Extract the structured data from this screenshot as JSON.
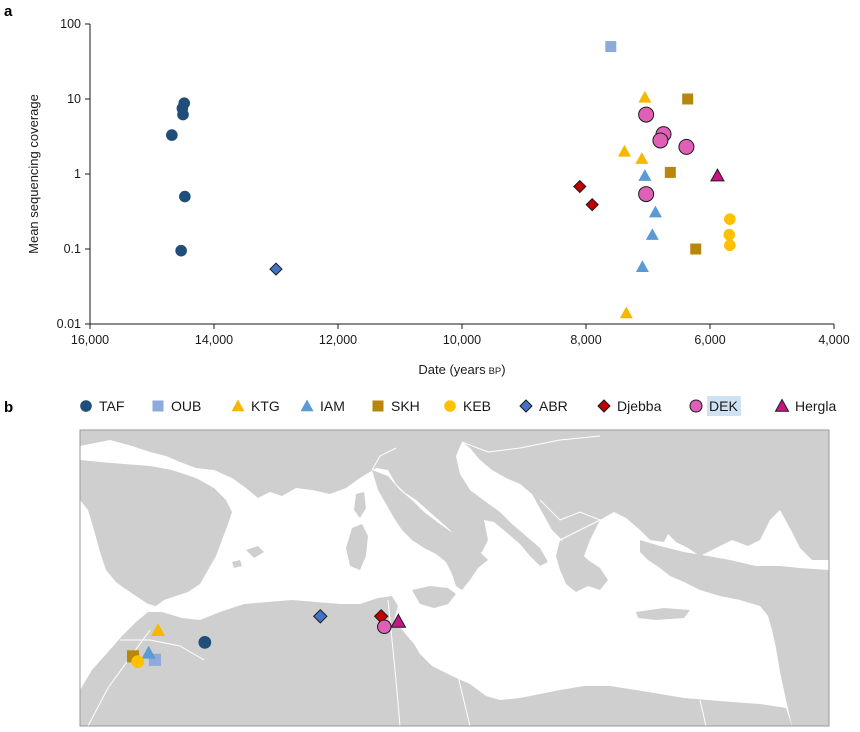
{
  "panels": {
    "a": "a",
    "b": "b"
  },
  "chart_data": {
    "type": "scatter",
    "title": "",
    "xlabel": "Date (years",
    "xlabel_suffix": "BP",
    "xlabel_close": ")",
    "ylabel": "Mean sequencing coverage",
    "x_reversed": true,
    "xlim": [
      16000,
      4000
    ],
    "y_scale": "log",
    "ylim": [
      0.01,
      100
    ],
    "x_ticks": [
      16000,
      14000,
      12000,
      10000,
      8000,
      6000,
      4000
    ],
    "x_tick_labels": [
      "16,000",
      "14,000",
      "12,000",
      "10,000",
      "8,000",
      "6,000",
      "4,000"
    ],
    "y_ticks": [
      100,
      10,
      1,
      0.1,
      0.01
    ],
    "y_tick_labels": [
      "100",
      "10",
      "1",
      "0.1",
      "0.01"
    ],
    "grid": false,
    "legend_placement": "below-chart",
    "series": [
      {
        "name": "TAF",
        "marker": "circle",
        "color": "#1f4e79",
        "x": [
          14480,
          14510,
          14500,
          14680,
          14470,
          14530
        ],
        "y": [
          8.8,
          7.5,
          6.2,
          3.3,
          0.5,
          0.095
        ]
      },
      {
        "name": "OUB",
        "marker": "square",
        "color": "#8eaadb",
        "x": [
          7600
        ],
        "y": [
          50
        ]
      },
      {
        "name": "KTG",
        "marker": "triangle",
        "color": "#f5b800",
        "x": [
          7050,
          7380,
          7100,
          7350
        ],
        "y": [
          10.5,
          2.0,
          1.6,
          0.014
        ]
      },
      {
        "name": "IAM",
        "marker": "triangle",
        "color": "#5b9bd5",
        "x": [
          7050,
          6880,
          6930,
          7090
        ],
        "y": [
          0.95,
          0.31,
          0.155,
          0.058
        ]
      },
      {
        "name": "SKH",
        "marker": "square",
        "color": "#b8860b",
        "x": [
          6360,
          6640,
          6230
        ],
        "y": [
          10,
          1.05,
          0.1
        ]
      },
      {
        "name": "KEB",
        "marker": "circle",
        "color": "#ffc000",
        "x": [
          5680,
          5690,
          5680
        ],
        "y": [
          0.25,
          0.155,
          0.112
        ]
      },
      {
        "name": "ABR",
        "marker": "diamond",
        "color": "#4472c4",
        "x": [
          13000
        ],
        "y": [
          0.054
        ]
      },
      {
        "name": "Djebba",
        "marker": "diamond",
        "color": "#c00000",
        "x": [
          8100,
          7900
        ],
        "y": [
          0.68,
          0.39
        ]
      },
      {
        "name": "DEK",
        "marker": "circle-large",
        "color": "#e060b8",
        "x": [
          7030,
          6750,
          6800,
          6380,
          7030
        ],
        "y": [
          6.2,
          3.4,
          2.8,
          2.3,
          0.54
        ]
      },
      {
        "name": "Hergla",
        "marker": "triangle",
        "color": "#c71585",
        "x": [
          5880
        ],
        "y": [
          0.95
        ]
      }
    ]
  },
  "map": {
    "land_color": "#cfcfcf",
    "sea_color": "#ffffff",
    "sites": [
      {
        "name": "TAF",
        "marker": "circle",
        "color": "#1f4e79",
        "lon": -2.0,
        "lat": 34.8
      },
      {
        "name": "OUB",
        "marker": "square",
        "color": "#8eaadb",
        "lon": -5.2,
        "lat": 33.8
      },
      {
        "name": "KTG",
        "marker": "triangle",
        "color": "#f5b800",
        "lon": -5.0,
        "lat": 35.5
      },
      {
        "name": "IAM",
        "marker": "triangle",
        "color": "#5b9bd5",
        "lon": -5.6,
        "lat": 34.2
      },
      {
        "name": "SKH",
        "marker": "square",
        "color": "#b8860b",
        "lon": -6.6,
        "lat": 34.0
      },
      {
        "name": "KEB",
        "marker": "circle",
        "color": "#ffc000",
        "lon": -6.3,
        "lat": 33.7
      },
      {
        "name": "ABR",
        "marker": "diamond",
        "color": "#4472c4",
        "lon": 5.4,
        "lat": 36.3
      },
      {
        "name": "Djebba",
        "marker": "diamond",
        "color": "#c00000",
        "lon": 9.3,
        "lat": 36.3
      },
      {
        "name": "DEK",
        "marker": "circle-large",
        "color": "#e060b8",
        "lon": 9.5,
        "lat": 35.7
      },
      {
        "name": "Hergla",
        "marker": "triangle",
        "color": "#c71585",
        "lon": 10.4,
        "lat": 36.0
      }
    ]
  }
}
